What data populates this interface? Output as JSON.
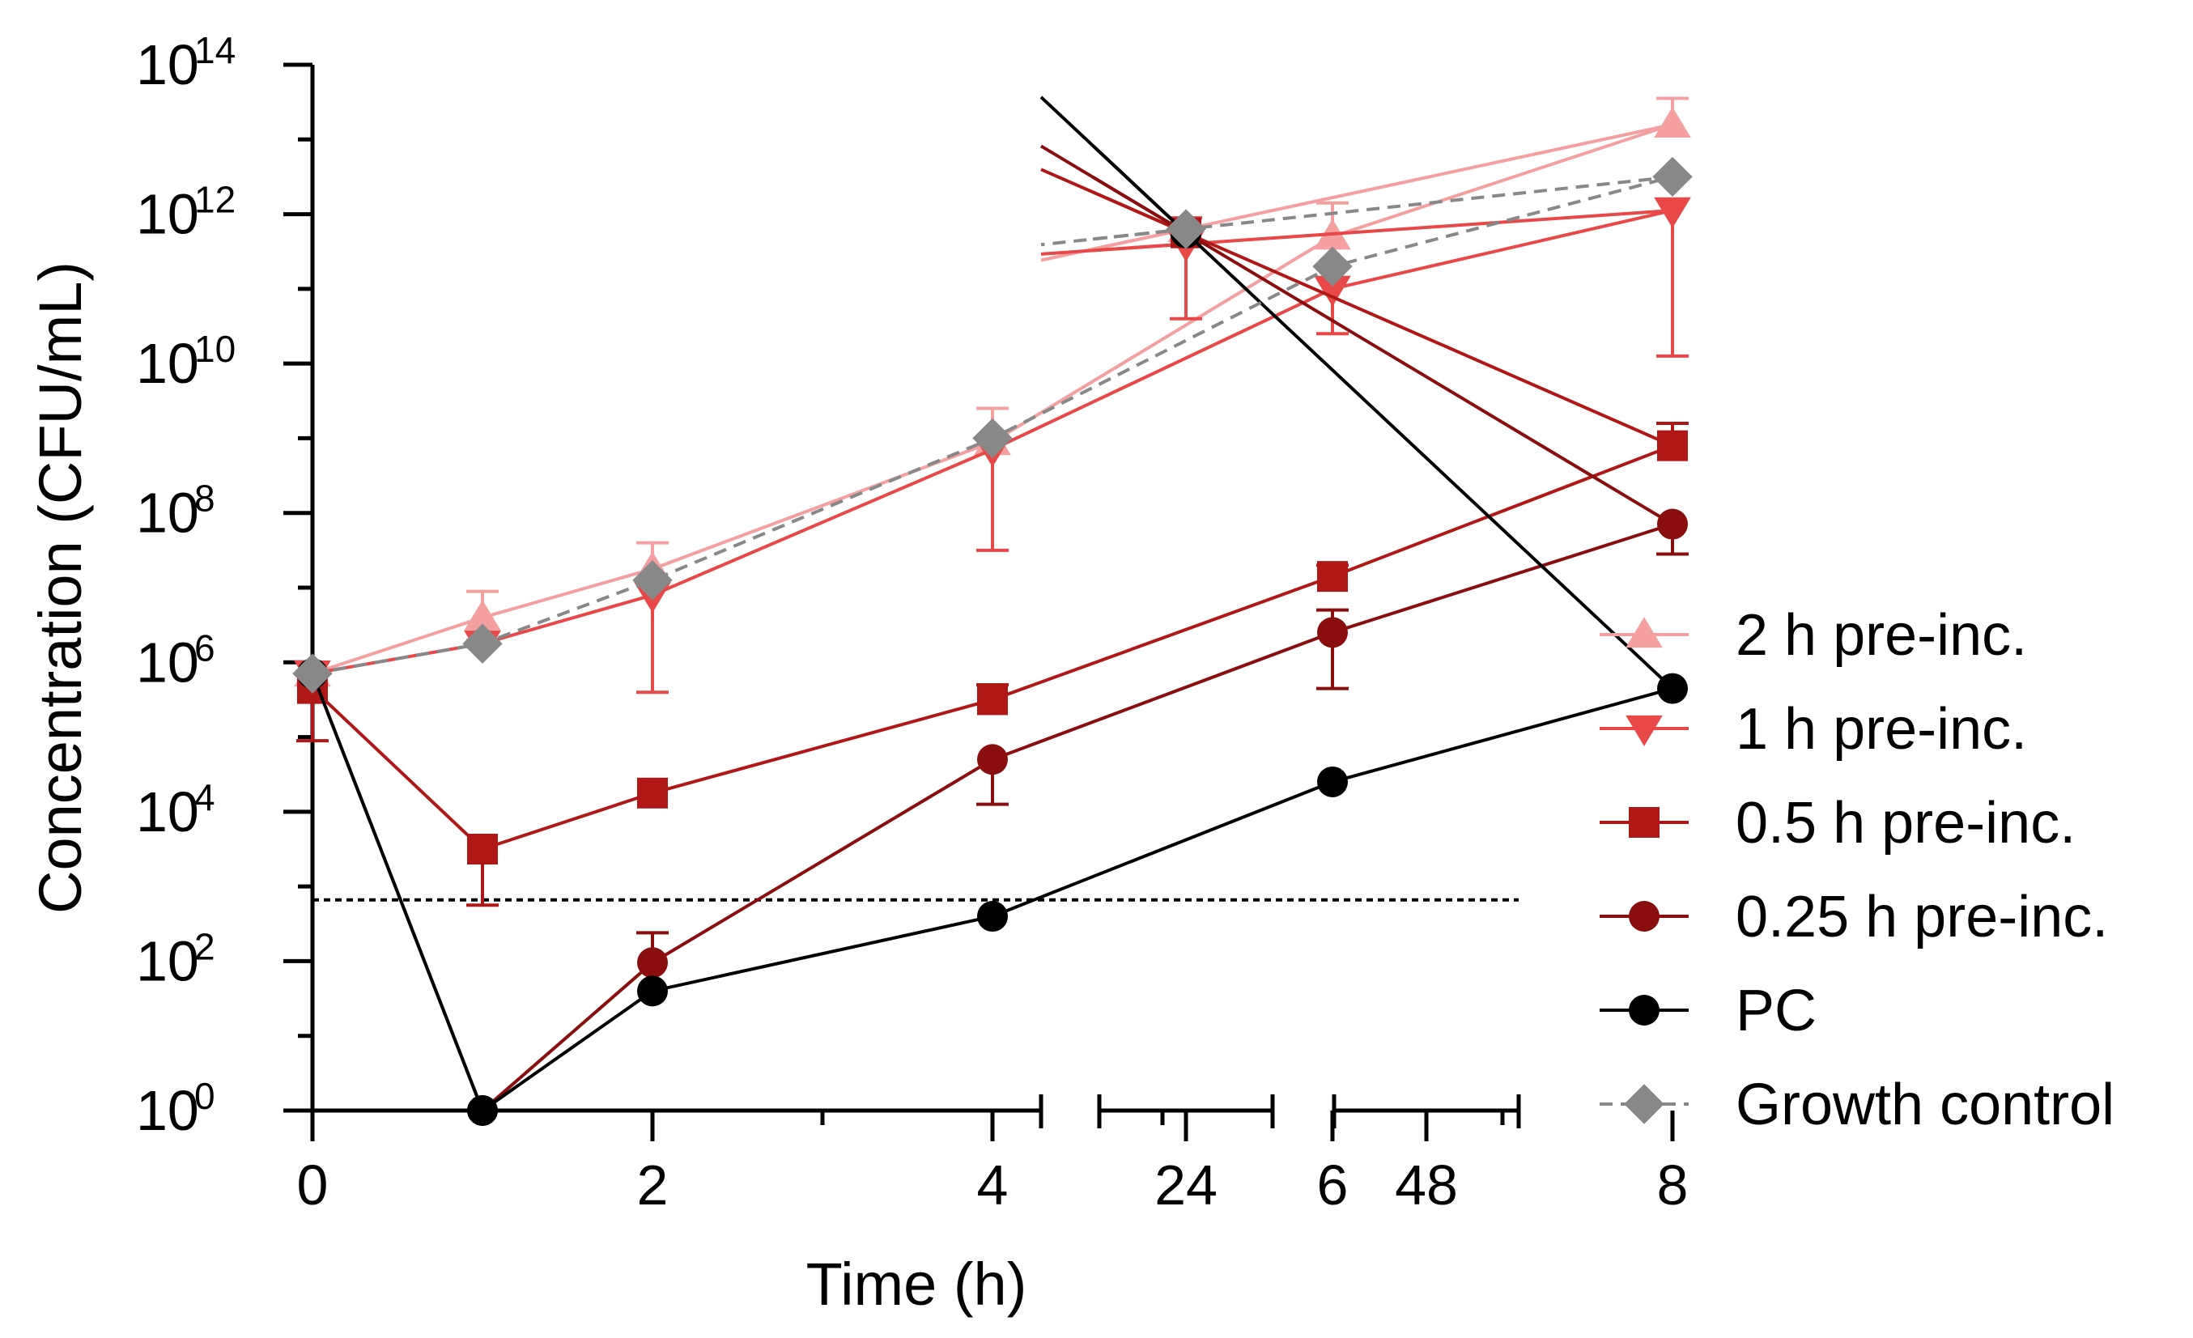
{
  "chart_data": {
    "type": "line",
    "xlabel": "Time (h)",
    "ylabel": "Concentration (CFU/mL)",
    "y_scale": "log10",
    "ylim_log10": [
      0,
      14
    ],
    "y_ticks": [
      {
        "base": "10",
        "exp": "0"
      },
      {
        "base": "10",
        "exp": "2"
      },
      {
        "base": "10",
        "exp": "4"
      },
      {
        "base": "10",
        "exp": "6"
      },
      {
        "base": "10",
        "exp": "8"
      },
      {
        "base": "10",
        "exp": "10"
      },
      {
        "base": "10",
        "exp": "12"
      },
      {
        "base": "10",
        "exp": "14"
      }
    ],
    "x_segments": [
      {
        "range": [
          0,
          8.5
        ],
        "tick_values": [
          0,
          2,
          4,
          6,
          8
        ],
        "tick_labels": [
          "0",
          "2",
          "4",
          "6",
          "8"
        ],
        "minor_ticks": [
          1,
          3,
          5,
          7
        ]
      },
      {
        "range": [
          20,
          28
        ],
        "tick_values": [
          24
        ],
        "tick_labels": [
          "24"
        ],
        "minor_ticks": []
      },
      {
        "range": [
          44,
          52
        ],
        "tick_values": [
          48
        ],
        "tick_labels": [
          "48"
        ],
        "minor_ticks": []
      }
    ],
    "limit_of_detection_log10": 2.82,
    "series": [
      {
        "name": "2 h pre-inc.",
        "color": "#f4a0a0",
        "marker": "triangle-up",
        "dash": "solid",
        "x": [
          0,
          1,
          2,
          4,
          6,
          8,
          24
        ],
        "log10_y": [
          5.85,
          6.6,
          7.25,
          8.95,
          11.7,
          13.2,
          11.8
        ],
        "log10_err_up": [
          0,
          0.35,
          0.35,
          0.45,
          0.45,
          0.35,
          0
        ],
        "log10_err_down": [
          0,
          0.3,
          0,
          0,
          0,
          0,
          0
        ]
      },
      {
        "name": "1 h pre-inc.",
        "color": "#e84848",
        "marker": "triangle-down",
        "dash": "solid",
        "x": [
          0,
          1,
          2,
          4,
          6,
          8,
          24
        ],
        "log10_y": [
          5.85,
          6.25,
          6.9,
          8.85,
          11.0,
          12.05,
          11.6
        ],
        "log10_err_up": [
          0,
          0,
          0,
          0,
          0,
          0,
          0.35
        ],
        "log10_err_down": [
          0,
          0,
          1.3,
          1.35,
          0.6,
          1.95,
          1.0
        ]
      },
      {
        "name": "0.5 h pre-inc.",
        "color": "#b01818",
        "marker": "square",
        "dash": "solid",
        "x": [
          0,
          1,
          2,
          4,
          6,
          8,
          24
        ],
        "log10_y": [
          5.65,
          3.5,
          4.25,
          5.5,
          7.15,
          8.9,
          11.75
        ],
        "log10_err_up": [
          0,
          0,
          0,
          0.2,
          0.15,
          0.3,
          0
        ],
        "log10_err_down": [
          0.7,
          0.75,
          0,
          0,
          0,
          0,
          0
        ]
      },
      {
        "name": "0.25 h pre-inc.",
        "color": "#8a0e0e",
        "marker": "circle",
        "dash": "solid",
        "x": [
          0,
          1,
          2,
          4,
          6,
          8,
          24
        ],
        "log10_y": [
          5.85,
          0,
          1.98,
          4.7,
          6.4,
          7.85,
          11.75
        ],
        "log10_err_up": [
          0,
          0,
          0.4,
          0,
          0.3,
          0,
          0
        ],
        "log10_err_down": [
          0,
          0,
          0,
          0.6,
          0.75,
          0.4,
          0
        ]
      },
      {
        "name": "PC",
        "color": "#000000",
        "marker": "circle",
        "dash": "solid",
        "x": [
          0,
          1,
          2,
          4,
          6,
          8,
          24
        ],
        "log10_y": [
          5.85,
          0,
          1.6,
          2.6,
          4.4,
          5.65,
          11.75
        ],
        "log10_err_up": [
          0,
          0,
          0,
          0,
          0,
          0,
          0
        ],
        "log10_err_down": [
          0,
          0,
          0,
          0,
          0,
          0,
          0
        ]
      },
      {
        "name": "Growth control",
        "color": "#888888",
        "marker": "diamond",
        "dash": "dashed",
        "x": [
          0,
          1,
          2,
          4,
          6,
          8,
          24
        ],
        "log10_y": [
          5.85,
          6.25,
          7.1,
          9.0,
          11.3,
          12.5,
          11.8
        ],
        "log10_err_up": [
          0,
          0,
          0,
          0,
          0,
          0,
          0
        ],
        "log10_err_down": [
          0,
          0,
          0,
          0,
          0,
          0,
          0
        ]
      }
    ]
  }
}
